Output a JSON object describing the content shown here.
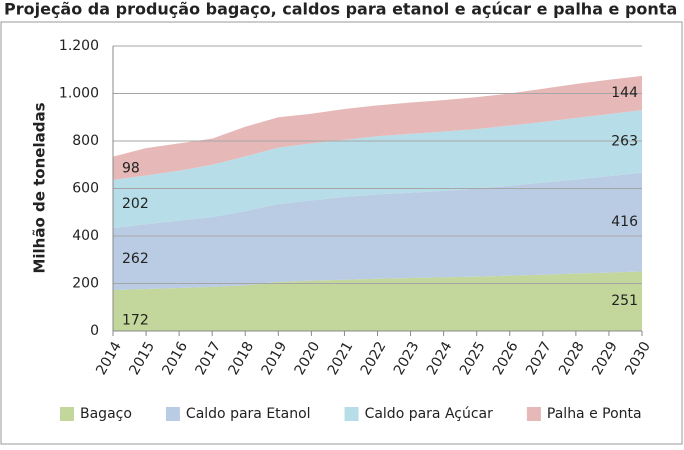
{
  "chart_data": {
    "type": "stacked_area",
    "title": "Projeção da produção bagaço, caldos para etanol e açúcar e palha e ponta",
    "y_label": "Milhão de toneladas",
    "categories": [
      "2014",
      "2015",
      "2016",
      "2017",
      "2018",
      "2019",
      "2020",
      "2021",
      "2022",
      "2023",
      "2024",
      "2025",
      "2026",
      "2027",
      "2028",
      "2029",
      "2030"
    ],
    "series": [
      {
        "name": "Bagaço",
        "color": "#c3d69b",
        "values": [
          172,
          177,
          181,
          186,
          192,
          207,
          212,
          216,
          220,
          223,
          226,
          229,
          233,
          237,
          242,
          246,
          251
        ]
      },
      {
        "name": "Caldo para Etanol",
        "color": "#b9cce4",
        "values": [
          262,
          273,
          284,
          294,
          313,
          328,
          338,
          349,
          355,
          359,
          364,
          371,
          379,
          388,
          396,
          406,
          416
        ]
      },
      {
        "name": "Caldo para Açúcar",
        "color": "#b7dee8",
        "values": [
          202,
          205,
          210,
          220,
          230,
          237,
          240,
          240,
          245,
          248,
          250,
          250,
          253,
          255,
          259,
          261,
          263
        ]
      },
      {
        "name": "Palha e Ponta",
        "color": "#e6b9b8",
        "values": [
          98,
          115,
          115,
          110,
          125,
          128,
          125,
          130,
          130,
          132,
          132,
          135,
          135,
          140,
          143,
          145,
          144
        ]
      }
    ],
    "ylim": [
      0,
      1200
    ],
    "yticks": [
      0,
      200,
      400,
      600,
      800,
      {
        "value": 1000,
        "label": "1.000"
      },
      {
        "value": 1200,
        "label": "1.200"
      }
    ],
    "grid": true,
    "legend": "bottom"
  }
}
